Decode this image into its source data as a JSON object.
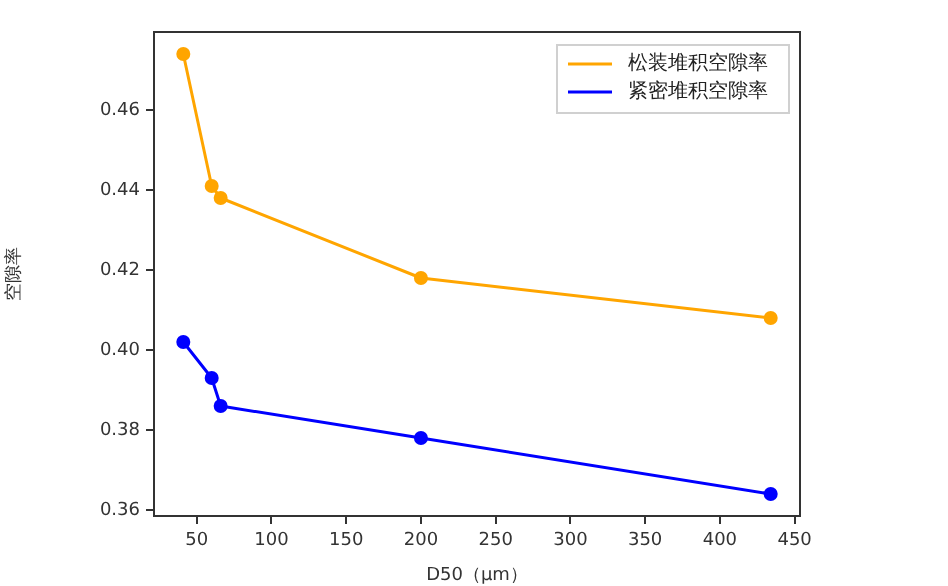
{
  "chart_data": {
    "type": "line",
    "xlabel": "D50（μm）",
    "ylabel": "空隙率",
    "x": [
      41,
      60,
      66,
      200,
      434
    ],
    "series": [
      {
        "name": "松装堆积空隙率",
        "color": "#ffa500",
        "values": [
          0.474,
          0.441,
          0.438,
          0.418,
          0.408
        ]
      },
      {
        "name": "紧密堆积空隙率",
        "color": "#0000ff",
        "values": [
          0.402,
          0.393,
          0.386,
          0.378,
          0.364
        ]
      }
    ],
    "xlim": [
      21.4,
      453.6
    ],
    "xticks": [
      50,
      100,
      150,
      200,
      250,
      300,
      350,
      400,
      450
    ],
    "ylim": [
      0.3585,
      0.4795
    ],
    "yticks": [
      {
        "value": 0.36,
        "label": "0.36"
      },
      {
        "value": 0.38,
        "label": "0.38"
      },
      {
        "value": 0.4,
        "label": "0.40"
      },
      {
        "value": 0.42,
        "label": "0.42"
      },
      {
        "value": 0.44,
        "label": "0.44"
      },
      {
        "value": 0.46,
        "label": "0.46"
      }
    ],
    "grid": false,
    "legend": "top right",
    "marker": "circle",
    "line_style": "solid"
  }
}
